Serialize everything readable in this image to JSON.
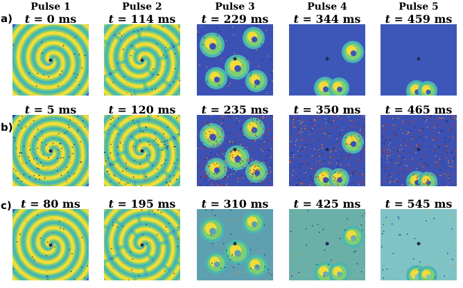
{
  "figure": {
    "column_headers": [
      "Pulse 1",
      "Pulse 2",
      "Pulse 3",
      "Pulse 4",
      "Pulse 5"
    ],
    "rows": [
      {
        "label": "a)",
        "times": [
          "0 ms",
          "114 ms",
          "229 ms",
          "344 ms",
          "459 ms"
        ],
        "panels": [
          {
            "pattern": "full-spiral",
            "noise": "low",
            "background": "#3b52b4"
          },
          {
            "pattern": "broken-spiral",
            "noise": "low",
            "background": "#3b52b4"
          },
          {
            "pattern": "fragments",
            "noise": "low",
            "background": "#3b52b4"
          },
          {
            "pattern": "few-fragments",
            "noise": "none",
            "background": "#3d57b9"
          },
          {
            "pattern": "single-fragment",
            "noise": "none",
            "background": "#3d57b9"
          }
        ]
      },
      {
        "label": "b)",
        "times": [
          "5 ms",
          "120 ms",
          "235 ms",
          "350 ms",
          "465 ms"
        ],
        "panels": [
          {
            "pattern": "full-spiral",
            "noise": "medium",
            "background": "#3b52b4"
          },
          {
            "pattern": "broken-spiral",
            "noise": "medium",
            "background": "#3b52b4"
          },
          {
            "pattern": "fragments",
            "noise": "high",
            "background": "#3b52b4"
          },
          {
            "pattern": "few-fragments",
            "noise": "high",
            "background": "#3b52b4"
          },
          {
            "pattern": "single-fragment",
            "noise": "high",
            "background": "#3b52b4"
          }
        ]
      },
      {
        "label": "c)",
        "times": [
          "80 ms",
          "195 ms",
          "310 ms",
          "425 ms",
          "545 ms"
        ],
        "panels": [
          {
            "pattern": "full-spiral",
            "noise": "low",
            "background": "#3f5fbe"
          },
          {
            "pattern": "broken-spiral",
            "noise": "low",
            "background": "#4a78c4"
          },
          {
            "pattern": "fragments",
            "noise": "low",
            "background": "#5fa0b0"
          },
          {
            "pattern": "few-fragments",
            "noise": "low",
            "background": "#6ab0a8"
          },
          {
            "pattern": "single-fragment",
            "noise": "low",
            "background": "#7fc3c6"
          }
        ]
      }
    ],
    "time_symbol": "t",
    "colors": {
      "front_yellow": "#f2dc3a",
      "front_orange": "#e8912e",
      "front_green": "#7fcf72",
      "front_cyan": "#4bb6b0",
      "noise_red": "#c8321e"
    }
  }
}
